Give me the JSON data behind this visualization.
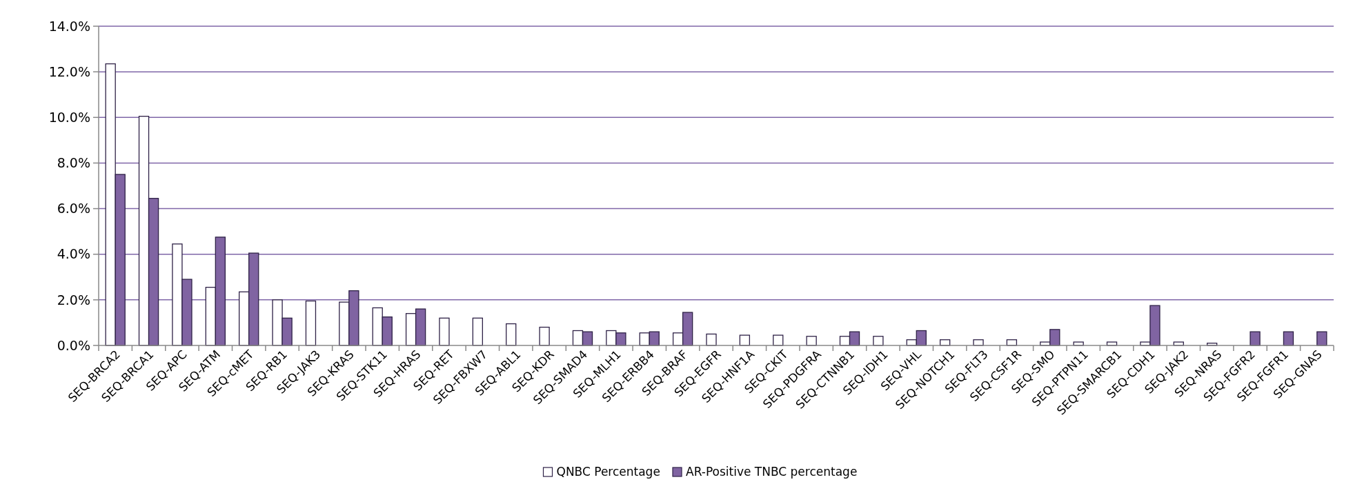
{
  "chart_data": {
    "type": "bar",
    "categories": [
      "SEQ-BRCA2",
      "SEQ-BRCA1",
      "SEQ-APC",
      "SEQ-ATM",
      "SEQ-cMET",
      "SEQ-RB1",
      "SEQ-JAK3",
      "SEQ-KRAS",
      "SEQ-STK11",
      "SEQ-HRAS",
      "SEQ-RET",
      "SEQ-FBXW7",
      "SEQ-ABL1",
      "SEQ-KDR",
      "SEQ-SMAD4",
      "SEQ-MLH1",
      "SEQ-ERBB4",
      "SEQ-BRAF",
      "SEQ-EGFR",
      "SEQ-HNF1A",
      "SEQ-CKIT",
      "SEQ-PDGFRA",
      "SEQ-CTNNB1",
      "SEQ-IDH1",
      "SEQ-VHL",
      "SEQ-NOTCH1",
      "SEQ-FLT3",
      "SEQ-CSF1R",
      "SEQ-SMO",
      "SEQ-PTPN11",
      "SEQ-SMARCB1",
      "SEQ-CDH1",
      "SEQ-JAK2",
      "SEQ-NRAS",
      "SEQ-FGFR2",
      "SEQ-FGFR1",
      "SEQ-GNAS"
    ],
    "series": [
      {
        "name": "QNBC Percentage",
        "color": "#ffffff",
        "values": [
          12.35,
          10.05,
          4.45,
          2.55,
          2.35,
          2.0,
          1.95,
          1.9,
          1.65,
          1.4,
          1.2,
          1.2,
          0.95,
          0.8,
          0.65,
          0.65,
          0.55,
          0.55,
          0.5,
          0.45,
          0.45,
          0.4,
          0.4,
          0.4,
          0.25,
          0.25,
          0.25,
          0.25,
          0.15,
          0.15,
          0.15,
          0.15,
          0.15,
          0.1,
          null,
          null,
          null
        ]
      },
      {
        "name": "AR-Positive TNBC percentage",
        "color": "#8064a2",
        "values": [
          7.5,
          6.45,
          2.9,
          4.75,
          4.05,
          1.2,
          null,
          2.4,
          1.25,
          1.6,
          null,
          null,
          null,
          null,
          0.6,
          0.55,
          0.6,
          1.45,
          null,
          null,
          null,
          null,
          0.6,
          null,
          0.65,
          null,
          null,
          null,
          0.7,
          null,
          null,
          1.75,
          null,
          null,
          0.6,
          0.6,
          0.6
        ]
      }
    ],
    "ylim": [
      0,
      14
    ],
    "yticks": [
      {
        "value": 0,
        "label": "0.0%"
      },
      {
        "value": 2,
        "label": "2.0%"
      },
      {
        "value": 4,
        "label": "4.0%"
      },
      {
        "value": 6,
        "label": "6.0%"
      },
      {
        "value": 8,
        "label": "8.0%"
      },
      {
        "value": 10,
        "label": "10.0%"
      },
      {
        "value": 12,
        "label": "12.0%"
      },
      {
        "value": 14,
        "label": "14.0%"
      }
    ],
    "grid": "y",
    "legend": "bottom"
  }
}
